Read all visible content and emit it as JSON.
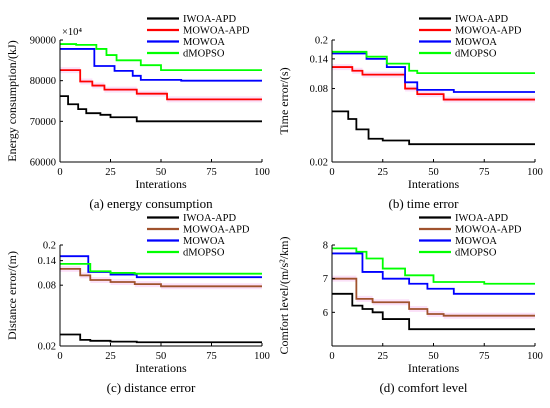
{
  "chart_data": [
    {
      "type": "line",
      "caption": "(a) energy consumption",
      "xlabel": "Interations",
      "ylabel": "Energy consumption/(kJ)",
      "y_multiplier_label": "×10⁴",
      "xlim": [
        0,
        100
      ],
      "ylim": [
        60000,
        90000
      ],
      "xticks": [
        "0",
        "25",
        "50",
        "75",
        "100"
      ],
      "yticks": [
        {
          "value": 60000,
          "label": "60000"
        },
        {
          "value": 70000,
          "label": "70000"
        },
        {
          "value": 80000,
          "label": "80000"
        },
        {
          "value": 90000,
          "label": "90000"
        }
      ],
      "legend_position": "top-right",
      "series": [
        {
          "name": "IWOA-APD",
          "color": "#000000",
          "points": [
            [
              0,
              76200
            ],
            [
              4,
              76200
            ],
            [
              4,
              74200
            ],
            [
              9,
              74200
            ],
            [
              9,
              73000
            ],
            [
              13,
              73000
            ],
            [
              13,
              72000
            ],
            [
              20,
              72000
            ],
            [
              20,
              71600
            ],
            [
              25,
              71600
            ],
            [
              25,
              71000
            ],
            [
              38,
              71000
            ],
            [
              38,
              70000
            ],
            [
              100,
              70000
            ]
          ]
        },
        {
          "name": "MOWOA-APD",
          "color": "#ff0000",
          "points": [
            [
              0,
              82600
            ],
            [
              10,
              82600
            ],
            [
              10,
              79800
            ],
            [
              16,
              79800
            ],
            [
              16,
              78800
            ],
            [
              22,
              78800
            ],
            [
              22,
              77800
            ],
            [
              38,
              77800
            ],
            [
              38,
              76800
            ],
            [
              53,
              76800
            ],
            [
              53,
              75400
            ],
            [
              100,
              75400
            ]
          ]
        },
        {
          "name": "MOWOA",
          "color": "#0000ff",
          "points": [
            [
              0,
              87800
            ],
            [
              17,
              87800
            ],
            [
              17,
              83600
            ],
            [
              27,
              83600
            ],
            [
              27,
              82400
            ],
            [
              36,
              82400
            ],
            [
              36,
              81200
            ],
            [
              40,
              81200
            ],
            [
              40,
              80200
            ],
            [
              60,
              80200
            ],
            [
              60,
              80000
            ],
            [
              100,
              80000
            ]
          ]
        },
        {
          "name": "dMOPSO",
          "color": "#00ff00",
          "points": [
            [
              0,
              89000
            ],
            [
              8,
              89000
            ],
            [
              8,
              88800
            ],
            [
              18,
              88800
            ],
            [
              18,
              87800
            ],
            [
              23,
              87800
            ],
            [
              23,
              86300
            ],
            [
              28,
              86300
            ],
            [
              28,
              85000
            ],
            [
              40,
              85000
            ],
            [
              40,
              83800
            ],
            [
              50,
              83800
            ],
            [
              50,
              82600
            ],
            [
              100,
              82600
            ]
          ]
        }
      ]
    },
    {
      "type": "line",
      "caption": "(b) time error",
      "xlabel": "Interations",
      "ylabel": "Time error/(s)",
      "xlim": [
        0,
        100
      ],
      "ylim": [
        0.02,
        0.2
      ],
      "yscale": "log",
      "xticks": [
        "0",
        "25",
        "50",
        "75",
        "100"
      ],
      "yticks": [
        {
          "value": 0.02,
          "label": "0.02"
        },
        {
          "value": 0.08,
          "label": "0.08"
        },
        {
          "value": 0.14,
          "label": "0.14"
        },
        {
          "value": 0.2,
          "label": "0.2"
        }
      ],
      "legend_position": "top-right",
      "series": [
        {
          "name": "IWOA-APD",
          "color": "#000000",
          "points": [
            [
              0,
              0.052
            ],
            [
              8,
              0.052
            ],
            [
              8,
              0.045
            ],
            [
              12,
              0.045
            ],
            [
              12,
              0.037
            ],
            [
              18,
              0.037
            ],
            [
              18,
              0.031
            ],
            [
              25,
              0.031
            ],
            [
              25,
              0.03
            ],
            [
              38,
              0.03
            ],
            [
              38,
              0.028
            ],
            [
              100,
              0.028
            ]
          ]
        },
        {
          "name": "MOWOA-APD",
          "color": "#ff0000",
          "points": [
            [
              0,
              0.12
            ],
            [
              10,
              0.12
            ],
            [
              10,
              0.112
            ],
            [
              15,
              0.112
            ],
            [
              15,
              0.104
            ],
            [
              36,
              0.104
            ],
            [
              36,
              0.08
            ],
            [
              42,
              0.08
            ],
            [
              42,
              0.072
            ],
            [
              55,
              0.072
            ],
            [
              55,
              0.065
            ],
            [
              100,
              0.065
            ]
          ]
        },
        {
          "name": "MOWOA",
          "color": "#0000ff",
          "points": [
            [
              0,
              0.155
            ],
            [
              17,
              0.155
            ],
            [
              17,
              0.14
            ],
            [
              27,
              0.14
            ],
            [
              27,
              0.12
            ],
            [
              36,
              0.12
            ],
            [
              36,
              0.09
            ],
            [
              42,
              0.09
            ],
            [
              42,
              0.078
            ],
            [
              60,
              0.078
            ],
            [
              60,
              0.075
            ],
            [
              100,
              0.075
            ]
          ]
        },
        {
          "name": "dMOPSO",
          "color": "#00ff00",
          "points": [
            [
              0,
              0.16
            ],
            [
              17,
              0.16
            ],
            [
              17,
              0.146
            ],
            [
              27,
              0.146
            ],
            [
              27,
              0.128
            ],
            [
              38,
              0.128
            ],
            [
              38,
              0.112
            ],
            [
              42,
              0.112
            ],
            [
              42,
              0.107
            ],
            [
              100,
              0.107
            ]
          ]
        }
      ]
    },
    {
      "type": "line",
      "caption": "(c) distance error",
      "xlabel": "Interations",
      "ylabel": "Distance error/(m)",
      "xlim": [
        0,
        100
      ],
      "ylim": [
        0.02,
        0.2
      ],
      "yscale": "log",
      "xticks": [
        "0",
        "25",
        "50",
        "75",
        "100"
      ],
      "yticks": [
        {
          "value": 0.02,
          "label": "0.02"
        },
        {
          "value": 0.08,
          "label": "0.08"
        },
        {
          "value": 0.14,
          "label": "0.14"
        },
        {
          "value": 0.2,
          "label": "0.2"
        }
      ],
      "legend_position": "top-right",
      "series": [
        {
          "name": "IWOA-APD",
          "color": "#000000",
          "points": [
            [
              0,
              0.026
            ],
            [
              10,
              0.026
            ],
            [
              10,
              0.023
            ],
            [
              15,
              0.023
            ],
            [
              15,
              0.0225
            ],
            [
              25,
              0.0225
            ],
            [
              25,
              0.0221
            ],
            [
              38,
              0.0221
            ],
            [
              38,
              0.0218
            ],
            [
              100,
              0.0218
            ]
          ]
        },
        {
          "name": "MOWOA-APD",
          "color": "#a0522d",
          "points": [
            [
              0,
              0.116
            ],
            [
              10,
              0.116
            ],
            [
              10,
              0.1
            ],
            [
              15,
              0.1
            ],
            [
              15,
              0.09
            ],
            [
              25,
              0.09
            ],
            [
              25,
              0.086
            ],
            [
              37,
              0.086
            ],
            [
              37,
              0.082
            ],
            [
              50,
              0.082
            ],
            [
              50,
              0.078
            ],
            [
              100,
              0.078
            ]
          ]
        },
        {
          "name": "MOWOA",
          "color": "#0000ff",
          "points": [
            [
              0,
              0.155
            ],
            [
              14,
              0.155
            ],
            [
              14,
              0.108
            ],
            [
              25,
              0.108
            ],
            [
              25,
              0.102
            ],
            [
              38,
              0.102
            ],
            [
              38,
              0.096
            ],
            [
              100,
              0.096
            ]
          ]
        },
        {
          "name": "dMOPSO",
          "color": "#00ff00",
          "points": [
            [
              0,
              0.13
            ],
            [
              15,
              0.13
            ],
            [
              15,
              0.11
            ],
            [
              25,
              0.11
            ],
            [
              25,
              0.106
            ],
            [
              37,
              0.106
            ],
            [
              37,
              0.104
            ],
            [
              100,
              0.104
            ]
          ]
        }
      ]
    },
    {
      "type": "line",
      "caption": "(d) comfort level",
      "xlabel": "Interations",
      "ylabel": "Comfort level/(m/s²/km)",
      "xlim": [
        0,
        100
      ],
      "ylim": [
        5,
        8
      ],
      "xticks": [
        "0",
        "25",
        "50",
        "75",
        "100"
      ],
      "yticks": [
        {
          "value": 6,
          "label": "6"
        },
        {
          "value": 7,
          "label": "7"
        },
        {
          "value": 8,
          "label": "8"
        }
      ],
      "legend_position": "top-right",
      "series": [
        {
          "name": "IWOA-APD",
          "color": "#000000",
          "points": [
            [
              0,
              6.55
            ],
            [
              10,
              6.55
            ],
            [
              10,
              6.2
            ],
            [
              15,
              6.2
            ],
            [
              15,
              6.1
            ],
            [
              20,
              6.1
            ],
            [
              20,
              6.0
            ],
            [
              25,
              6.0
            ],
            [
              25,
              5.8
            ],
            [
              38,
              5.8
            ],
            [
              38,
              5.5
            ],
            [
              100,
              5.5
            ]
          ]
        },
        {
          "name": "MOWOA-APD",
          "color": "#a0522d",
          "points": [
            [
              0,
              7.0
            ],
            [
              12,
              7.0
            ],
            [
              12,
              6.4
            ],
            [
              20,
              6.4
            ],
            [
              20,
              6.3
            ],
            [
              38,
              6.3
            ],
            [
              38,
              6.1
            ],
            [
              47,
              6.1
            ],
            [
              47,
              5.95
            ],
            [
              55,
              5.95
            ],
            [
              55,
              5.9
            ],
            [
              100,
              5.9
            ]
          ]
        },
        {
          "name": "MOWOA",
          "color": "#0000ff",
          "points": [
            [
              0,
              7.75
            ],
            [
              15,
              7.75
            ],
            [
              15,
              7.2
            ],
            [
              25,
              7.2
            ],
            [
              25,
              7.0
            ],
            [
              38,
              7.0
            ],
            [
              38,
              6.85
            ],
            [
              47,
              6.85
            ],
            [
              47,
              6.7
            ],
            [
              60,
              6.7
            ],
            [
              60,
              6.55
            ],
            [
              100,
              6.55
            ]
          ]
        },
        {
          "name": "dMOPSO",
          "color": "#00ff00",
          "points": [
            [
              0,
              7.9
            ],
            [
              12,
              7.9
            ],
            [
              12,
              7.8
            ],
            [
              17,
              7.8
            ],
            [
              17,
              7.6
            ],
            [
              25,
              7.6
            ],
            [
              25,
              7.3
            ],
            [
              36,
              7.3
            ],
            [
              36,
              7.1
            ],
            [
              50,
              7.1
            ],
            [
              50,
              6.9
            ],
            [
              75,
              6.9
            ],
            [
              75,
              6.85
            ],
            [
              100,
              6.85
            ]
          ]
        }
      ]
    }
  ]
}
